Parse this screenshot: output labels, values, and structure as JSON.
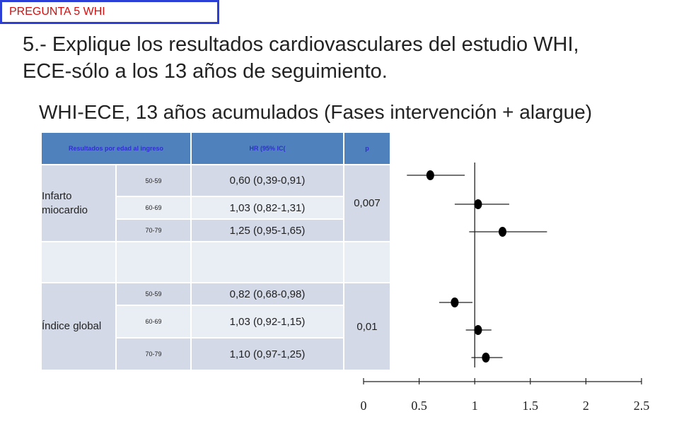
{
  "header_tag": "PREGUNTA 5 WHI",
  "question_line1": "5.- Explique los resultados cardiovasculares del estudio WHI,",
  "question_line2": "ECE-sólo a los 13 años de seguimiento.",
  "subtitle": "WHI-ECE, 13 años acumulados (Fases intervención + alargue)",
  "table": {
    "headers": [
      "Resultados por edad al ingreso",
      "HR (95% IC(",
      "p"
    ],
    "groups": [
      {
        "label": "Infarto miocardio",
        "p": "0,007",
        "rows": [
          {
            "age": "50-59",
            "hr": "0,60 (0,39-0,91)"
          },
          {
            "age": "60-69",
            "hr": "1,03 (0,82-1,31)"
          },
          {
            "age": "70-79",
            "hr": "1,25 (0,95-1,65)"
          }
        ]
      },
      {
        "label": "Índice global",
        "p": "0,01",
        "rows": [
          {
            "age": "50-59",
            "hr": "0,82 (0,68-0,98)"
          },
          {
            "age": "60-69",
            "hr": "1,03 (0,92-1,15)"
          },
          {
            "age": "70-79",
            "hr": "1,10 (0,97-1,25)"
          }
        ]
      }
    ]
  },
  "chart_data": {
    "type": "scatter",
    "subtype": "forest-plot",
    "xlim": [
      0,
      2.5
    ],
    "xticks": [
      "0",
      "0.5",
      "1",
      "1.5",
      "2",
      "2.5"
    ],
    "reference_line": 1,
    "grid": false,
    "point_color": "#000000",
    "line_color": "#222222",
    "points": [
      {
        "group": "Infarto miocardio",
        "age": "50-59",
        "hr": 0.6,
        "lo": 0.39,
        "hi": 0.91
      },
      {
        "group": "Infarto miocardio",
        "age": "60-69",
        "hr": 1.03,
        "lo": 0.82,
        "hi": 1.31
      },
      {
        "group": "Infarto miocardio",
        "age": "70-79",
        "hr": 1.25,
        "lo": 0.95,
        "hi": 1.65
      },
      {
        "group": "Índice global",
        "age": "50-59",
        "hr": 0.82,
        "lo": 0.68,
        "hi": 0.98
      },
      {
        "group": "Índice global",
        "age": "60-69",
        "hr": 1.03,
        "lo": 0.92,
        "hi": 1.15
      },
      {
        "group": "Índice global",
        "age": "70-79",
        "hr": 1.1,
        "lo": 0.97,
        "hi": 1.25
      }
    ]
  }
}
